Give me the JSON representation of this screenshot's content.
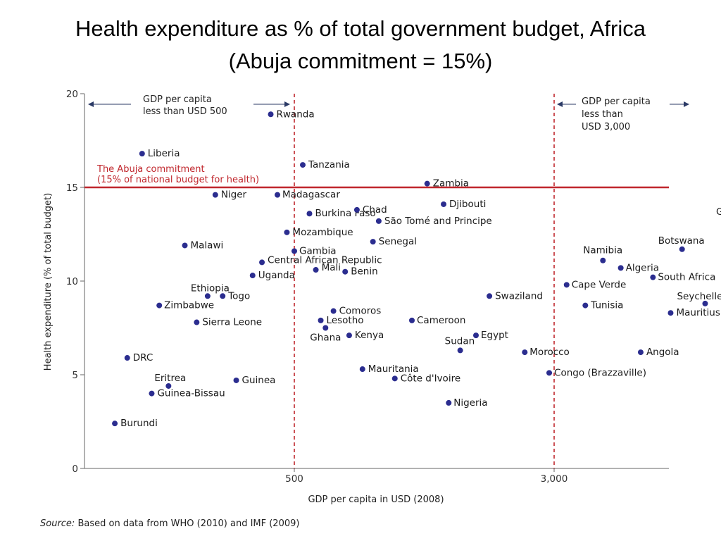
{
  "title": {
    "line1": "Health expenditure as % of total government budget, Africa",
    "line2": "(Abuja commitment = 15%)"
  },
  "source": {
    "prefix": "Source:",
    "text": "Based on data from WHO (2010) and IMF (2009)"
  },
  "chart_data": {
    "type": "scatter",
    "xlabel": "GDP per capita in USD (2008)",
    "ylabel": "Health expenditure (% of total budget)",
    "ylim": [
      0,
      20
    ],
    "yticks": [
      "0",
      "5",
      "10",
      "15",
      "20"
    ],
    "xticks": [
      {
        "label": "500",
        "at": 500
      },
      {
        "label": "3,000",
        "at": 3000
      }
    ],
    "x_scale": "log",
    "reference_line": {
      "y": 15,
      "color": "#c0272d"
    },
    "reference_label": [
      "The Abuja commitment",
      "(15% of national budget for health)"
    ],
    "vertical_lines": [
      500,
      3000
    ],
    "annotations": [
      {
        "lines": [
          "GDP per capita",
          "less than USD 500"
        ],
        "arrow": "left"
      },
      {
        "lines": [
          "GDP per capita",
          "less than",
          "USD 3,000"
        ],
        "arrow": "right"
      }
    ],
    "marker_color": "#2b2d8f",
    "points": [
      {
        "name": "Burundi",
        "gdp": 145,
        "y": 2.4
      },
      {
        "name": "DRC",
        "gdp": 158,
        "y": 5.9
      },
      {
        "name": "Liberia",
        "gdp": 175,
        "y": 16.8
      },
      {
        "name": "Guinea-Bissau",
        "gdp": 187,
        "y": 4.0
      },
      {
        "name": "Zimbabwe",
        "gdp": 197,
        "y": 8.7
      },
      {
        "name": "Eritrea",
        "gdp": 210,
        "y": 4.4
      },
      {
        "name": "Malawi",
        "gdp": 235,
        "y": 11.9
      },
      {
        "name": "Sierra Leone",
        "gdp": 255,
        "y": 7.8
      },
      {
        "name": "Ethiopia",
        "gdp": 275,
        "y": 9.2
      },
      {
        "name": "Niger",
        "gdp": 290,
        "y": 14.6
      },
      {
        "name": "Togo",
        "gdp": 305,
        "y": 9.2
      },
      {
        "name": "Guinea",
        "gdp": 335,
        "y": 4.7
      },
      {
        "name": "Uganda",
        "gdp": 375,
        "y": 10.3
      },
      {
        "name": "Central African Republic",
        "gdp": 400,
        "y": 11.0
      },
      {
        "name": "Rwanda",
        "gdp": 425,
        "y": 18.9
      },
      {
        "name": "Madagascar",
        "gdp": 445,
        "y": 14.6
      },
      {
        "name": "Mozambique",
        "gdp": 475,
        "y": 12.6
      },
      {
        "name": "Gambia",
        "gdp": 500,
        "y": 11.6
      },
      {
        "name": "Tanzania",
        "gdp": 530,
        "y": 16.2
      },
      {
        "name": "Burkina Faso",
        "gdp": 555,
        "y": 13.6
      },
      {
        "name": "Mali",
        "gdp": 580,
        "y": 10.6
      },
      {
        "name": "Lesotho",
        "gdp": 600,
        "y": 7.9
      },
      {
        "name": "Ghana",
        "gdp": 620,
        "y": 7.5
      },
      {
        "name": "Comoros",
        "gdp": 655,
        "y": 8.4
      },
      {
        "name": "Benin",
        "gdp": 710,
        "y": 10.5
      },
      {
        "name": "Kenya",
        "gdp": 730,
        "y": 7.1
      },
      {
        "name": "Chad",
        "gdp": 770,
        "y": 13.8
      },
      {
        "name": "Mauritania",
        "gdp": 800,
        "y": 5.3
      },
      {
        "name": "Senegal",
        "gdp": 860,
        "y": 12.1
      },
      {
        "name": "São Tomé and Principe",
        "gdp": 895,
        "y": 13.2
      },
      {
        "name": "Côte d'Ivoire",
        "gdp": 1000,
        "y": 4.8
      },
      {
        "name": "Cameroon",
        "gdp": 1125,
        "y": 7.9
      },
      {
        "name": "Zambia",
        "gdp": 1250,
        "y": 15.2
      },
      {
        "name": "Djibouti",
        "gdp": 1400,
        "y": 14.1
      },
      {
        "name": "Nigeria",
        "gdp": 1450,
        "y": 3.5
      },
      {
        "name": "Sudan",
        "gdp": 1570,
        "y": 6.3
      },
      {
        "name": "Egypt",
        "gdp": 1750,
        "y": 7.1
      },
      {
        "name": "Swaziland",
        "gdp": 1920,
        "y": 9.2
      },
      {
        "name": "Morocco",
        "gdp": 2450,
        "y": 6.2
      },
      {
        "name": "Congo (Brazzaville)",
        "gdp": 2900,
        "y": 5.1
      },
      {
        "name": "Cape Verde",
        "gdp": 3270,
        "y": 9.8
      },
      {
        "name": "Tunisia",
        "gdp": 3720,
        "y": 8.7
      },
      {
        "name": "Namibia",
        "gdp": 4200,
        "y": 11.1
      },
      {
        "name": "Algeria",
        "gdp": 4750,
        "y": 10.7
      },
      {
        "name": "Angola",
        "gdp": 5450,
        "y": 6.2
      },
      {
        "name": "South Africa",
        "gdp": 5930,
        "y": 10.2
      },
      {
        "name": "Mauritius",
        "gdp": 6700,
        "y": 8.3
      },
      {
        "name": "Botswana",
        "gdp": 7250,
        "y": 11.7
      },
      {
        "name": "Seychelles",
        "gdp": 8500,
        "y": 8.8
      },
      {
        "name": "Gabon",
        "gdp": 10200,
        "y": 14.1
      }
    ]
  }
}
